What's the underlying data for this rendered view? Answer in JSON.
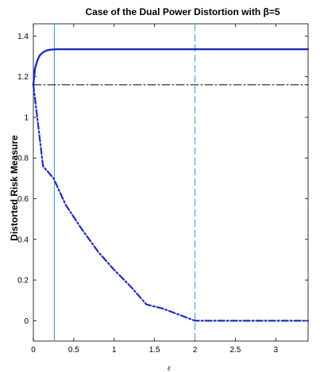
{
  "chart_data": {
    "type": "line",
    "title": "Case of the Dual Power Distortion with β=5",
    "xlabel": "ε",
    "ylabel": "Distorted Risk Measure",
    "xlim": [
      0,
      3.4
    ],
    "ylim": [
      -0.1,
      1.46
    ],
    "x_ticks": [
      0,
      0.5,
      1,
      1.5,
      2,
      2.5,
      3
    ],
    "x_tick_labels": [
      "0",
      "0.5",
      "1",
      "1.5",
      "2",
      "2.5",
      "3"
    ],
    "y_ticks": [
      0,
      0.2,
      0.4,
      0.6,
      0.8,
      1,
      1.2,
      1.4
    ],
    "y_tick_labels": [
      "0",
      "0.2",
      "0.4",
      "0.6",
      "0.8",
      "1",
      "1.2",
      "1.4"
    ],
    "grid": false,
    "series": [
      {
        "style": "solid",
        "color": "#1f2bbf",
        "x": [
          0,
          0.02,
          0.05,
          0.08,
          0.12,
          0.16,
          0.2,
          0.25,
          0.3,
          0.4,
          3.4
        ],
        "y": [
          1.16,
          1.24,
          1.28,
          1.305,
          1.32,
          1.328,
          1.332,
          1.334,
          1.335,
          1.335,
          1.335
        ]
      },
      {
        "style": "dashdot",
        "color": "#1f2bbf",
        "x": [
          0,
          0.12,
          0.25,
          0.4,
          0.6,
          0.8,
          1.0,
          1.2,
          1.4,
          1.6,
          1.8,
          2.0,
          2.5,
          3.0,
          3.4
        ],
        "y": [
          1.16,
          0.76,
          0.7,
          0.57,
          0.45,
          0.34,
          0.25,
          0.17,
          0.08,
          0.06,
          0.03,
          0.0,
          0.0,
          0.0,
          0.0
        ]
      },
      {
        "style": "dashdot-thin",
        "color": "#000000",
        "x": [
          0,
          3.4
        ],
        "y": [
          1.16,
          1.16
        ]
      }
    ],
    "vertical_lines": [
      {
        "x": 0.26,
        "style": "solid",
        "color": "#4aa3d8"
      },
      {
        "x": 2.0,
        "style": "dashed",
        "color": "#4aa3d8"
      }
    ]
  }
}
